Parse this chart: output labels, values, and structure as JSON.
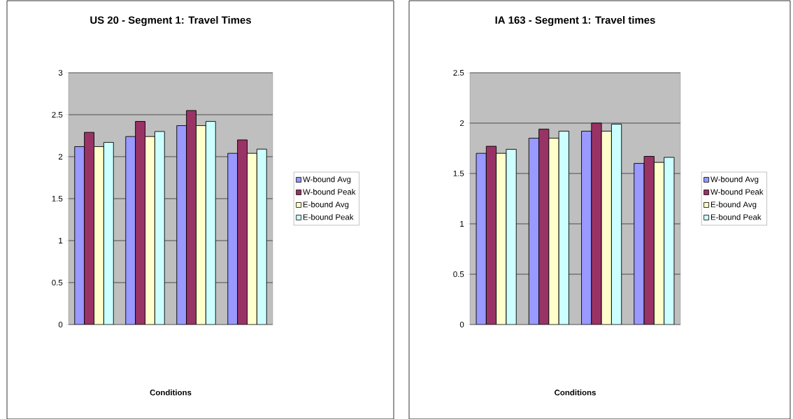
{
  "chart_data": [
    {
      "type": "bar",
      "title": "US 20 - Segment 1: Travel Times",
      "xlabel": "Conditions",
      "categories": [
        null,
        null,
        null,
        null
      ],
      "series": [
        {
          "name": "W-bound Avg",
          "color": "#9999ff",
          "values": [
            2.12,
            2.24,
            2.37,
            2.04
          ]
        },
        {
          "name": "W-bound Peak",
          "color": "#993366",
          "values": [
            2.29,
            2.42,
            2.55,
            2.2
          ]
        },
        {
          "name": "E-bound Avg",
          "color": "#ffffcc",
          "values": [
            2.12,
            2.24,
            2.37,
            2.04
          ]
        },
        {
          "name": "E-bound Peak",
          "color": "#ccffff",
          "values": [
            2.17,
            2.3,
            2.42,
            2.09
          ]
        }
      ],
      "ylim": [
        0,
        3
      ],
      "yticks": [
        0,
        0.5,
        1,
        1.5,
        2,
        2.5,
        3
      ],
      "grid": "y",
      "legend": "right"
    },
    {
      "type": "bar",
      "title": "IA 163 - Segment 1: Travel times",
      "xlabel": "Conditions",
      "categories": [
        null,
        null,
        null,
        null
      ],
      "series": [
        {
          "name": "W-bound Avg",
          "color": "#9999ff",
          "values": [
            1.7,
            1.85,
            1.92,
            1.6
          ]
        },
        {
          "name": "W-bound Peak",
          "color": "#993366",
          "values": [
            1.77,
            1.94,
            2.0,
            1.67
          ]
        },
        {
          "name": "E-bound Avg",
          "color": "#ffffcc",
          "values": [
            1.7,
            1.85,
            1.92,
            1.61
          ]
        },
        {
          "name": "E-bound Peak",
          "color": "#ccffff",
          "values": [
            1.74,
            1.92,
            1.99,
            1.66
          ]
        }
      ],
      "ylim": [
        0,
        2.5
      ],
      "yticks": [
        0,
        0.5,
        1,
        1.5,
        2,
        2.5
      ],
      "grid": "y",
      "legend": "right"
    }
  ]
}
